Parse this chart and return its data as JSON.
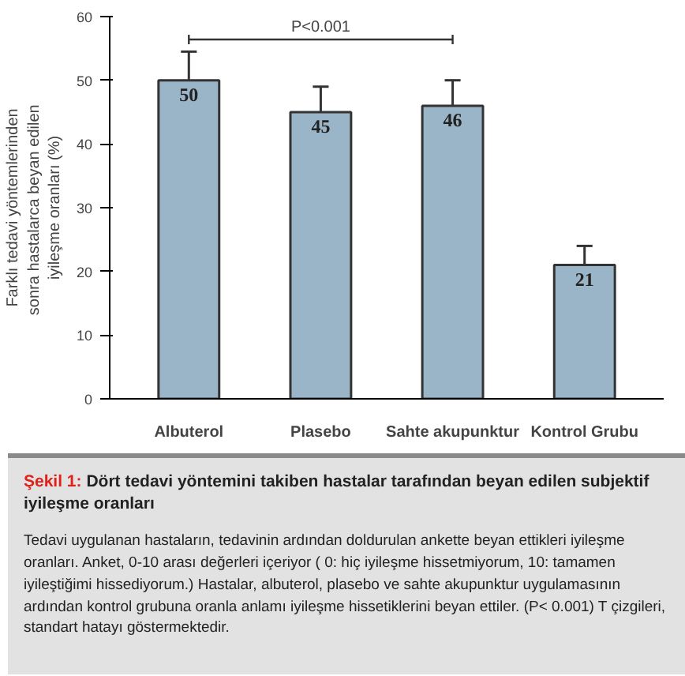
{
  "chart_data": {
    "type": "bar",
    "title": "Şekil 1: Dört tedavi yöntemini takiben hastalar tarafından beyan edilen subjektif iyileşme oranları",
    "ylabel": "Farklı tedavi yöntemlerinden\nsonra hastalarca  beyan edilen\niyileşme oranları (%)",
    "categories": [
      "Albuterol",
      "Plasebo",
      "Sahte akupunktur",
      "Kontrol Grubu"
    ],
    "values": [
      50,
      45,
      46,
      21
    ],
    "errors": [
      [
        50,
        54.5
      ],
      [
        45,
        49
      ],
      [
        46,
        50
      ],
      [
        21,
        24
      ]
    ],
    "color": "#9ab4c8",
    "ylim": [
      0,
      60
    ],
    "yticks": [
      0,
      10,
      20,
      30,
      40,
      50,
      60
    ],
    "data_labels": true,
    "grid": false,
    "annotations": [
      "P<0.001",
      "Tedavi uygulanan hastaların, tedavinin ardından doldurulan ankette beyan ettikleri iyileşme oranları. Anket, 0-10 arası değerleri içeriyor ( 0: hiç iyileşme hissetmiyorum, 10: tamamen iyileştiğimi hissediyorum.) Hastalar, albuterol, plasebo ve sahte akupunktur uygulamasının ardından kontrol grubuna oranla anlamı iyileşme hissetiklerini beyan ettiler. (P< 0.001) T çizgileri, standart hatayı göstermektedir."
    ]
  }
}
